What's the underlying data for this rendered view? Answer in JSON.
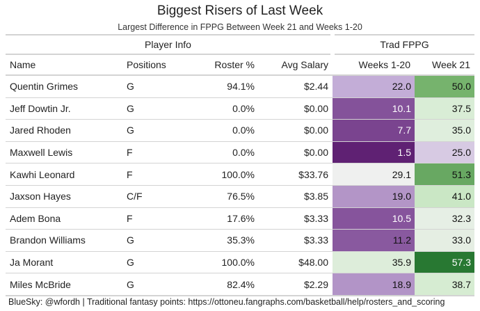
{
  "title": "Biggest Risers of Last Week",
  "subtitle": "Largest Difference in FPPG Between Week 21 and Weeks 1-20",
  "spanners": {
    "player_info": "Player Info",
    "trad_fppg": "Trad FPPG"
  },
  "columns": {
    "name": "Name",
    "positions": "Positions",
    "roster": "Roster %",
    "salary": "Avg Salary",
    "weeks_1_20": "Weeks 1-20",
    "week_21": "Week 21"
  },
  "source": "BlueSky: @wfordh | Traditional fantasy points: https://ottoneu.fangraphs.com/basketball/help/rosters_and_scoring",
  "chart_data": {
    "type": "table",
    "title": "Biggest Risers of Last Week",
    "subtitle": "Largest Difference in FPPG Between Week 21 and Weeks 1-20",
    "columns": [
      "Name",
      "Positions",
      "Roster %",
      "Avg Salary",
      "Weeks 1-20",
      "Week 21"
    ],
    "color_scale": {
      "weeks_1_20": "purple",
      "week_21": "green",
      "range": [
        0,
        57.3
      ]
    },
    "rows": [
      {
        "name": "Quentin Grimes",
        "positions": "G",
        "roster": "94.1%",
        "salary": "$2.44",
        "w120": "22.0",
        "w21": "50.0"
      },
      {
        "name": "Jeff Dowtin Jr.",
        "positions": "G",
        "roster": "0.0%",
        "salary": "$0.00",
        "w120": "10.1",
        "w21": "37.5"
      },
      {
        "name": "Jared Rhoden",
        "positions": "G",
        "roster": "0.0%",
        "salary": "$0.00",
        "w120": "7.7",
        "w21": "35.0"
      },
      {
        "name": "Maxwell Lewis",
        "positions": "F",
        "roster": "0.0%",
        "salary": "$0.00",
        "w120": "1.5",
        "w21": "25.0"
      },
      {
        "name": "Kawhi Leonard",
        "positions": "F",
        "roster": "100.0%",
        "salary": "$33.76",
        "w120": "29.1",
        "w21": "51.3"
      },
      {
        "name": "Jaxson Hayes",
        "positions": "C/F",
        "roster": "76.5%",
        "salary": "$3.85",
        "w120": "19.0",
        "w21": "41.0"
      },
      {
        "name": "Adem Bona",
        "positions": "F",
        "roster": "17.6%",
        "salary": "$3.33",
        "w120": "10.5",
        "w21": "32.3"
      },
      {
        "name": "Brandon Williams",
        "positions": "G",
        "roster": "35.3%",
        "salary": "$3.33",
        "w120": "11.2",
        "w21": "33.0"
      },
      {
        "name": "Ja Morant",
        "positions": "G",
        "roster": "100.0%",
        "salary": "$48.00",
        "w120": "35.9",
        "w21": "57.3"
      },
      {
        "name": "Miles McBride",
        "positions": "G",
        "roster": "82.4%",
        "salary": "$2.29",
        "w120": "18.9",
        "w21": "38.7"
      }
    ]
  }
}
